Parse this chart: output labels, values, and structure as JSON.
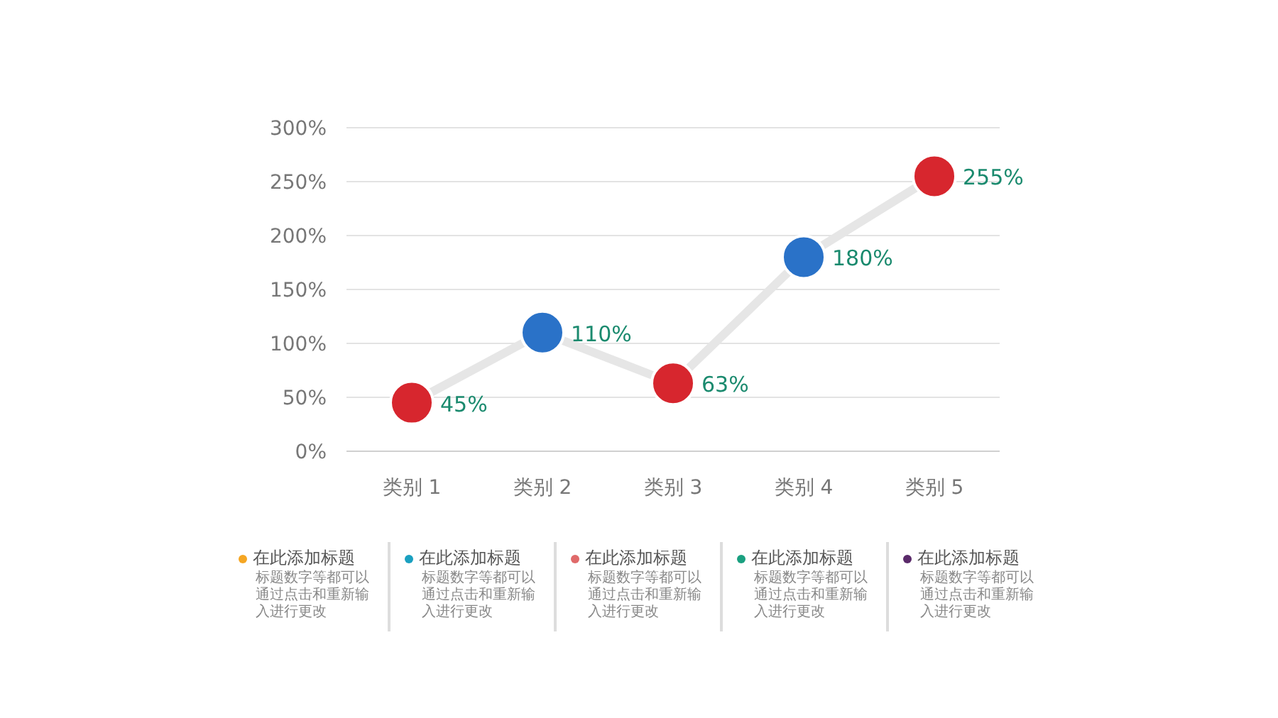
{
  "chart_data": {
    "type": "line",
    "categories": [
      "类别 1",
      "类别 2",
      "类别 3",
      "类别 4",
      "类别 5"
    ],
    "values": [
      45,
      110,
      63,
      180,
      255
    ],
    "color": "#e6e6e6",
    "colors": [
      "#d7262e",
      "#2a72c8",
      "#d7262e",
      "#2a72c8",
      "#d7262e"
    ],
    "value_labels": [
      "45%",
      "110%",
      "63%",
      "180%",
      "255%"
    ],
    "ylim": [
      0,
      300
    ],
    "yticks": [
      {
        "value": 0,
        "label": "0%"
      },
      {
        "value": 50,
        "label": "50%"
      },
      {
        "value": 100,
        "label": "100%"
      },
      {
        "value": 150,
        "label": "150%"
      },
      {
        "value": 200,
        "label": "200%"
      },
      {
        "value": 250,
        "label": "250%"
      },
      {
        "value": 300,
        "label": "300%"
      }
    ],
    "grid": "y",
    "marker": "circle",
    "line_style": "solid",
    "annotations": [
      "在此添加标题",
      "标题数字等都可以通过点击和重新输入进行更改",
      "在此添加标题",
      "标题数字等都可以通过点击和重新输入进行更改",
      "在此添加标题",
      "标题数字等都可以通过点击和重新输入进行更改",
      "在此添加标题",
      "标题数字等都可以通过点击和重新输入进行更改",
      "在此添加标题",
      "标题数字等都可以通过点击和重新输入进行更改"
    ]
  }
}
